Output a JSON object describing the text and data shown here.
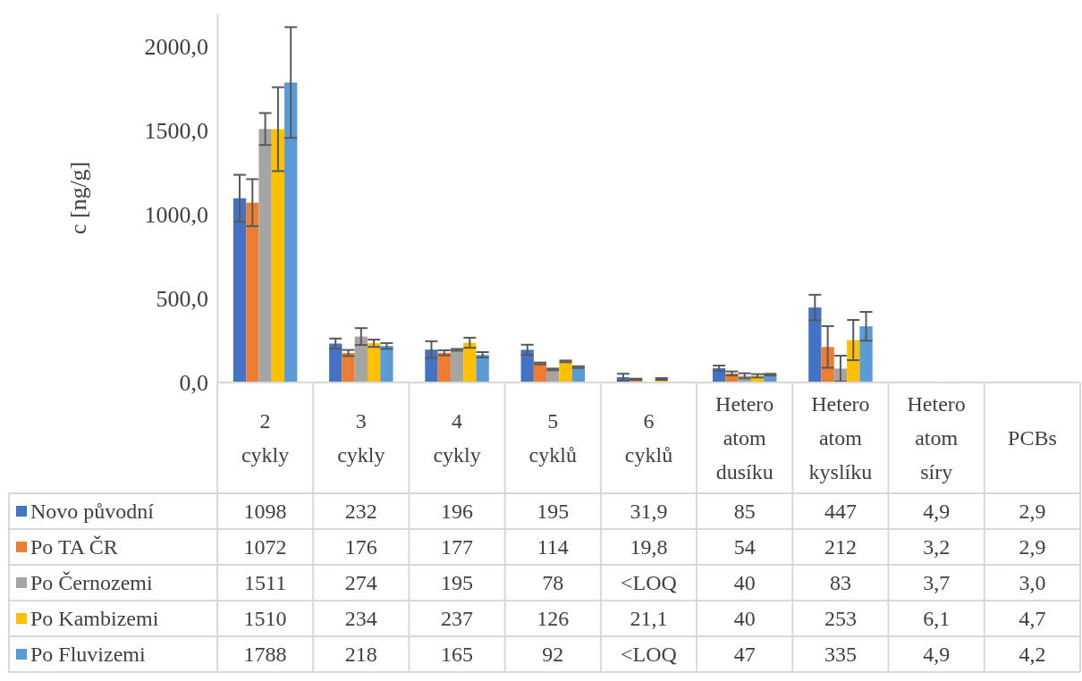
{
  "chart_data": {
    "type": "bar",
    "ylabel": "c [ng/g]",
    "categories": [
      "2 cykly",
      "3 cykly",
      "4 cykly",
      "5 cyklů",
      "6 cyklů",
      "Hetero atom dusíku",
      "Hetero atom kyslíku",
      "Hetero atom síry",
      "PCBs"
    ],
    "series": [
      {
        "name": "Novo původní",
        "color": "#4472c4",
        "values": [
          1098,
          232,
          196,
          195,
          31.9,
          85,
          447,
          4.9,
          2.9
        ],
        "errors": [
          140,
          30,
          50,
          30,
          20,
          16,
          76,
          null,
          null
        ],
        "value_labels": [
          "1098",
          "232",
          "196",
          "195",
          "31,9",
          "85",
          "447",
          "4,9",
          "2,9"
        ]
      },
      {
        "name": "Po TA ČR",
        "color": "#ed7d31",
        "values": [
          1072,
          176,
          177,
          114,
          19.8,
          54,
          212,
          3.2,
          2.9
        ],
        "errors": [
          140,
          18,
          15,
          5,
          3,
          12,
          124,
          null,
          null
        ],
        "value_labels": [
          "1072",
          "176",
          "177",
          "114",
          "19,8",
          "54",
          "212",
          "3,2",
          "2,9"
        ]
      },
      {
        "name": "Po Černozemi",
        "color": "#a5a5a5",
        "values": [
          1511,
          274,
          195,
          78,
          null,
          40,
          83,
          3.7,
          3.0
        ],
        "errors": [
          95,
          50,
          5,
          5,
          null,
          15,
          77,
          null,
          null
        ],
        "value_labels": [
          "1511",
          "274",
          "195",
          "78",
          "<LOQ",
          "40",
          "83",
          "3,7",
          "3,0"
        ]
      },
      {
        "name": "Po Kambizemi",
        "color": "#ffc000",
        "values": [
          1510,
          234,
          237,
          126,
          21.1,
          40,
          253,
          6.1,
          4.7
        ],
        "errors": [
          250,
          22,
          30,
          5,
          5,
          10,
          120,
          null,
          null
        ],
        "value_labels": [
          "1510",
          "234",
          "237",
          "126",
          "21,1",
          "40",
          "253",
          "6,1",
          "4,7"
        ]
      },
      {
        "name": "Po Fluvizemi",
        "color": "#5b9bd5",
        "values": [
          1788,
          218,
          165,
          92,
          null,
          47,
          335,
          4.9,
          4.2
        ],
        "errors": [
          330,
          17,
          16,
          5,
          null,
          5,
          86,
          null,
          null
        ],
        "value_labels": [
          "1788",
          "218",
          "165",
          "92",
          "<LOQ",
          "47",
          "335",
          "4,9",
          "4,2"
        ]
      }
    ],
    "ylim": [
      0,
      2200
    ],
    "yticks": [
      {
        "value": 0,
        "label": "0,0"
      },
      {
        "value": 500,
        "label": "500,0"
      },
      {
        "value": 1000,
        "label": "1000,0"
      },
      {
        "value": 1500,
        "label": "1500,0"
      },
      {
        "value": 2000,
        "label": "2000,0"
      }
    ],
    "legend": "bottom"
  }
}
